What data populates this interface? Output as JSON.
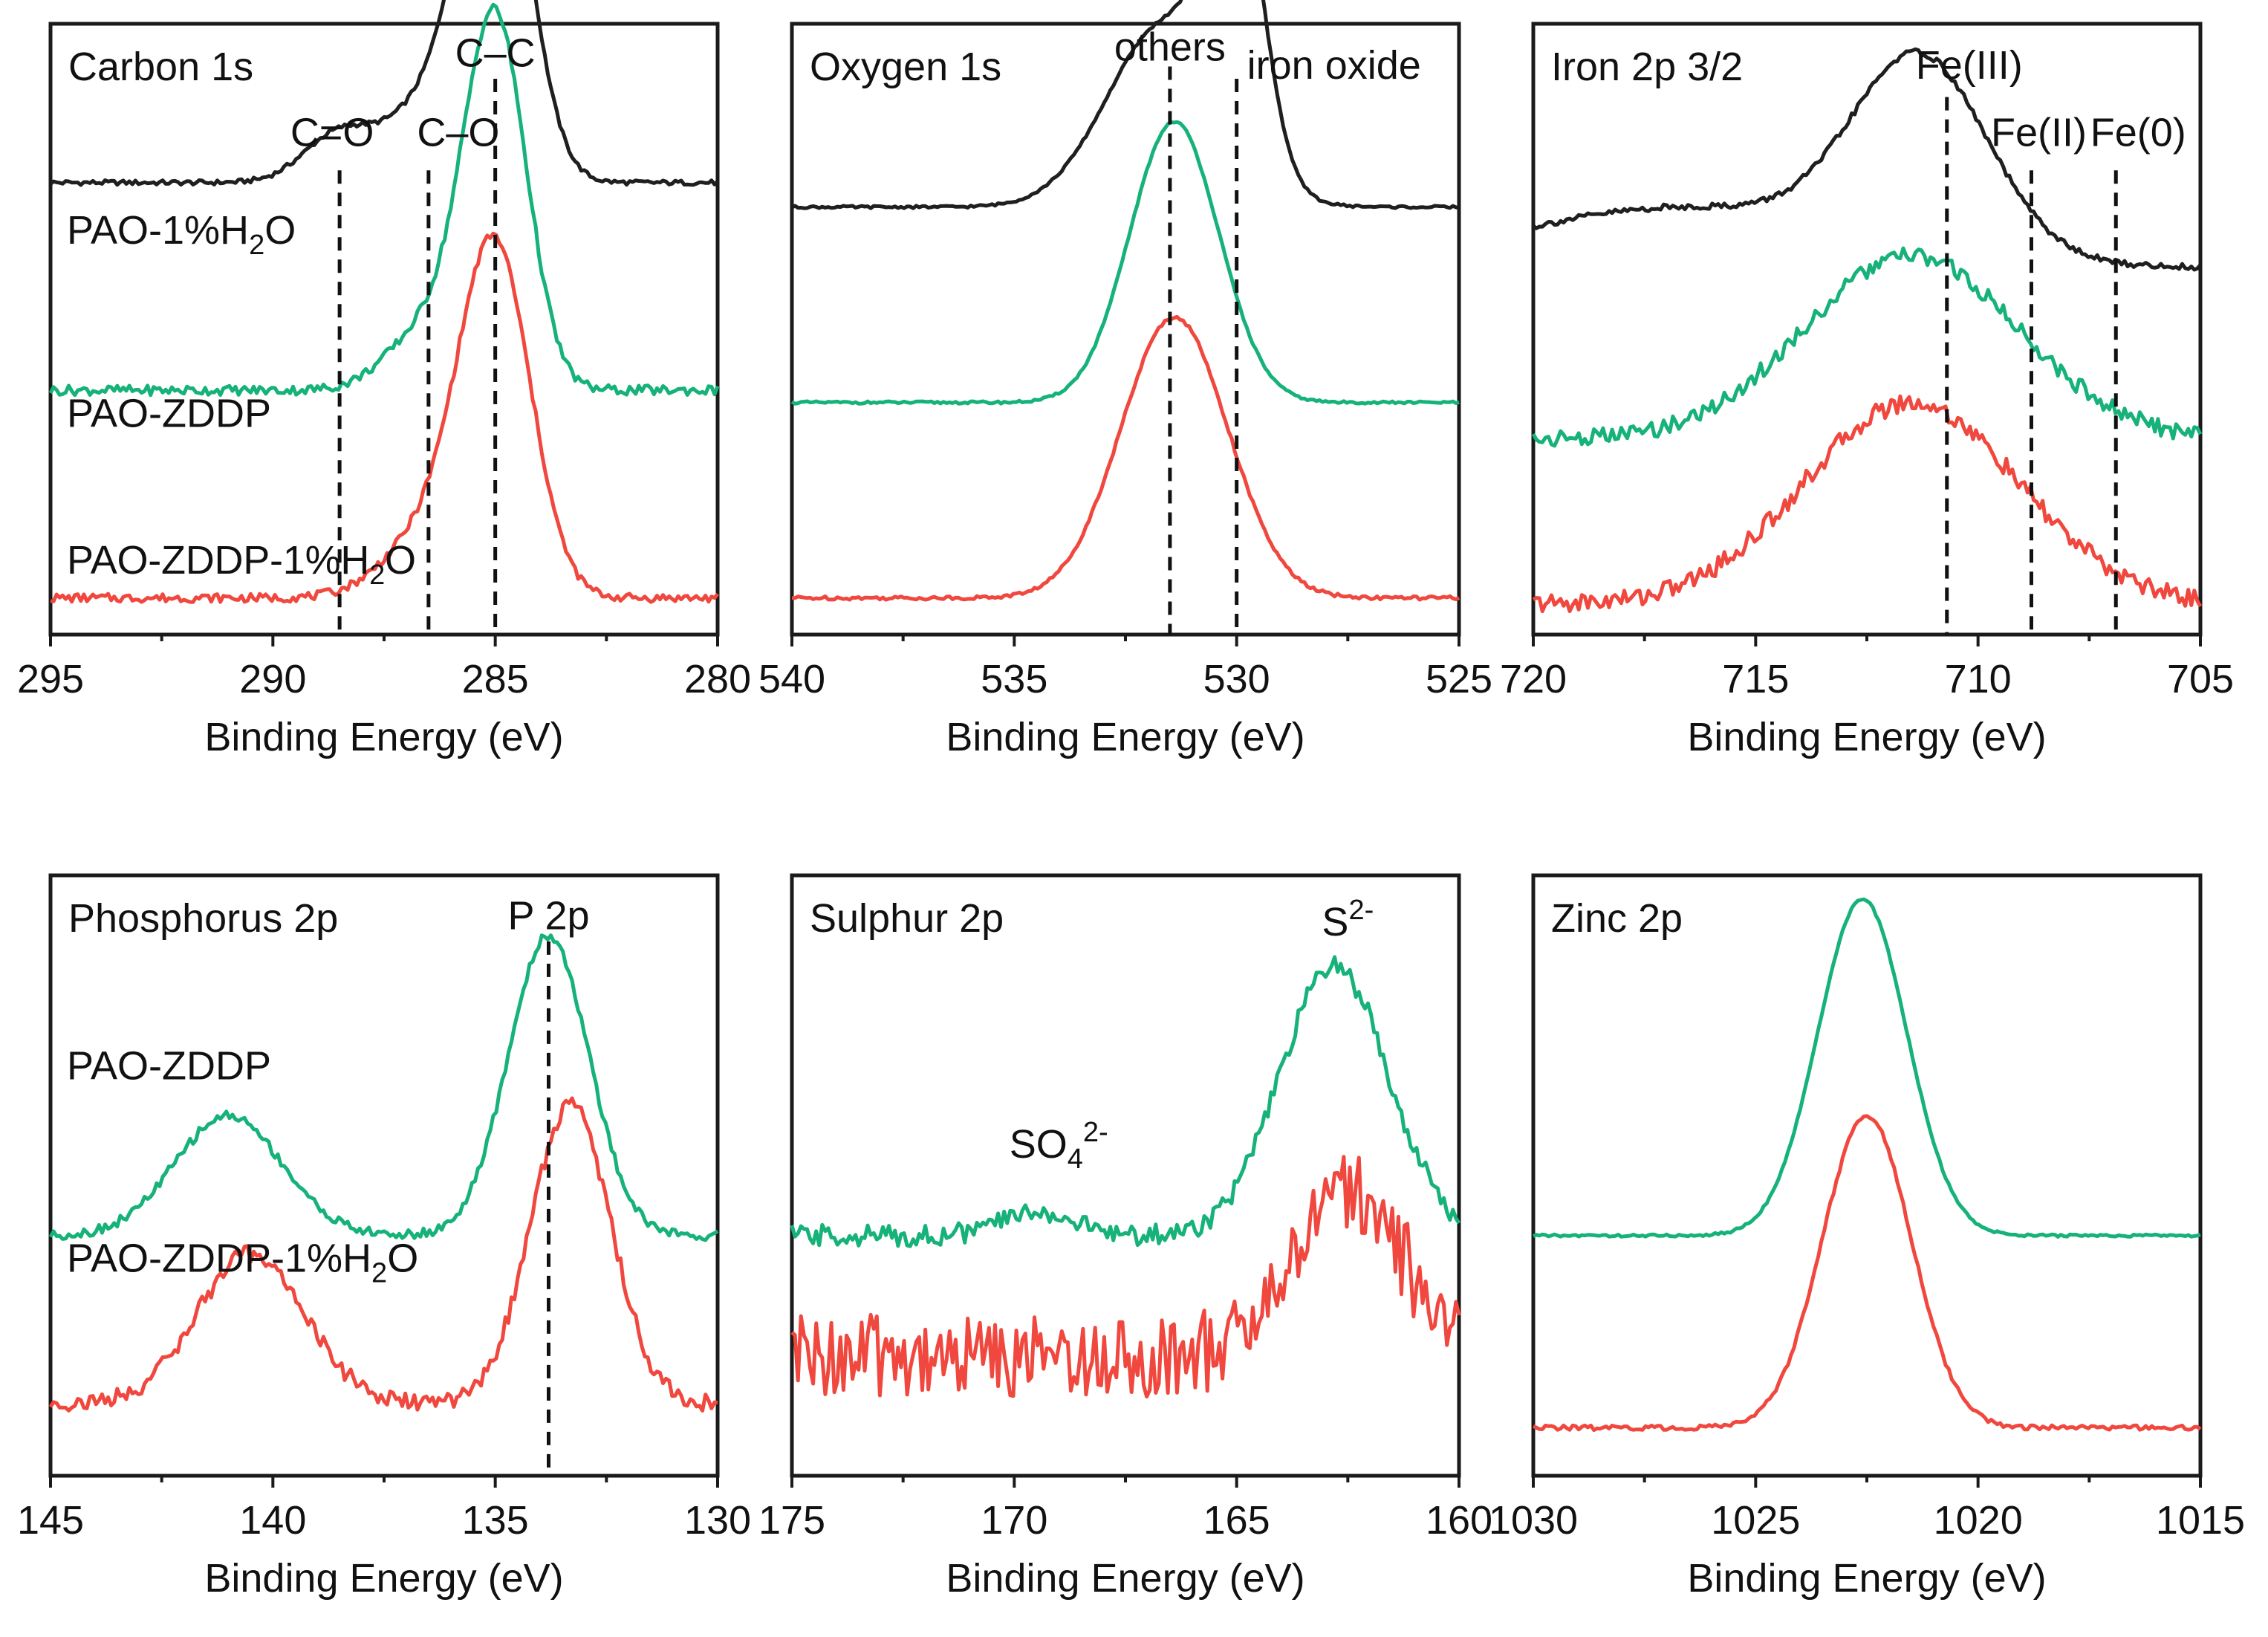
{
  "colors": {
    "PAO-1%H2O": "#1f1f1f",
    "PAO-ZDDP": "#16b27a",
    "PAO-ZDDP-1%H2O": "#f0483e"
  },
  "chart_data": [
    {
      "type": "line",
      "title": "Carbon 1s",
      "xlabel": "Binding Energy (eV)",
      "ylabel": "",
      "xlim": [
        295,
        280
      ],
      "xticks": [
        295,
        290,
        285,
        280
      ],
      "reference_lines": [
        {
          "x": 288.5,
          "label": "C=O"
        },
        {
          "x": 286.5,
          "label": "C–O"
        },
        {
          "x": 285.0,
          "label": "C–C"
        }
      ],
      "series": [
        {
          "name": "PAO-1%H2O",
          "baseline": 0.74,
          "noise": 0.004,
          "peaks": [
            [
              285.0,
              0.62,
              0.75
            ],
            [
              286.5,
              0.12,
              0.9
            ],
            [
              288.5,
              0.08,
              0.8
            ]
          ]
        },
        {
          "name": "PAO-ZDDP",
          "baseline": 0.4,
          "noise": 0.008,
          "peaks": [
            [
              285.0,
              0.6,
              0.7
            ],
            [
              286.5,
              0.1,
              0.9
            ]
          ]
        },
        {
          "name": "PAO-ZDDP-1%H2O",
          "baseline": 0.06,
          "noise": 0.007,
          "peaks": [
            [
              285.0,
              0.56,
              0.8
            ],
            [
              286.5,
              0.1,
              1.0
            ]
          ]
        }
      ],
      "labels": [
        {
          "text": "PAO-1%H",
          "sub": "2",
          "tail": "O"
        },
        {
          "text": "PAO-ZDDP",
          "sub": "",
          "tail": ""
        },
        {
          "text": "PAO-ZDDP-1%H",
          "sub": "2",
          "tail": "O"
        }
      ]
    },
    {
      "type": "line",
      "title": "Oxygen 1s",
      "xlabel": "Binding Energy (eV)",
      "ylabel": "",
      "xlim": [
        540,
        525
      ],
      "xticks": [
        540,
        535,
        530,
        525
      ],
      "reference_lines": [
        {
          "x": 531.5,
          "label": "others"
        },
        {
          "x": 530.0,
          "label": "iron oxide"
        }
      ],
      "series": [
        {
          "name": "PAO-1%H2O",
          "baseline": 0.7,
          "noise": 0.002,
          "peaks": [
            [
              530.0,
              0.44,
              0.6
            ],
            [
              531.6,
              0.3,
              1.3
            ]
          ]
        },
        {
          "name": "PAO-ZDDP",
          "baseline": 0.38,
          "noise": 0.002,
          "peaks": [
            [
              531.4,
              0.46,
              1.0
            ]
          ]
        },
        {
          "name": "PAO-ZDDP-1%H2O",
          "baseline": 0.06,
          "noise": 0.003,
          "peaks": [
            [
              531.4,
              0.46,
              1.2
            ]
          ]
        }
      ],
      "labels": []
    },
    {
      "type": "line",
      "title": "Iron 2p 3/2",
      "xlabel": "Binding Energy (eV)",
      "ylabel": "",
      "xlim": [
        720,
        705
      ],
      "xticks": [
        720,
        715,
        710,
        705
      ],
      "reference_lines": [
        {
          "x": 710.7,
          "label": "Fe(III)"
        },
        {
          "x": 708.8,
          "label": "Fe(II)"
        },
        {
          "x": 706.9,
          "label": "Fe(0)"
        }
      ],
      "series": [
        {
          "name": "PAO-1%H2O",
          "baseline": 0.6,
          "noise": 0.005,
          "peaks": [
            [
              711.3,
              0.31,
              1.5
            ],
            [
              716.5,
              0.1,
              4.0
            ]
          ]
        },
        {
          "name": "PAO-ZDDP",
          "baseline": 0.32,
          "noise": 0.014,
          "peaks": [
            [
              711.5,
              0.3,
              2.4
            ]
          ]
        },
        {
          "name": "PAO-ZDDP-1%H2O",
          "baseline": 0.05,
          "noise": 0.016,
          "peaks": [
            [
              711.5,
              0.33,
              2.4
            ]
          ]
        }
      ],
      "labels": []
    },
    {
      "type": "line",
      "title": "Phosphorus 2p",
      "xlabel": "Binding Energy (eV)",
      "ylabel": "",
      "xlim": [
        145,
        130
      ],
      "xticks": [
        145,
        140,
        135,
        130
      ],
      "reference_lines": [
        {
          "x": 133.8,
          "label": "P 2p"
        }
      ],
      "series": [
        {
          "name": "PAO-ZDDP",
          "baseline": 0.4,
          "noise": 0.008,
          "peaks": [
            [
              133.8,
              0.5,
              0.9
            ],
            [
              141.0,
              0.2,
              1.2
            ]
          ]
        },
        {
          "name": "PAO-ZDDP-1%H2O",
          "baseline": 0.12,
          "noise": 0.014,
          "peaks": [
            [
              133.3,
              0.5,
              0.9
            ],
            [
              140.5,
              0.25,
              1.2
            ]
          ]
        }
      ],
      "labels": [
        {
          "text": "PAO-ZDDP",
          "sub": "",
          "tail": ""
        },
        {
          "text": "PAO-ZDDP-1%H",
          "sub": "2",
          "tail": "O"
        }
      ]
    },
    {
      "type": "line",
      "title": "Sulphur 2p",
      "xlabel": "Binding Energy (eV)",
      "ylabel": "",
      "xlim": [
        175,
        160
      ],
      "xticks": [
        175,
        170,
        165,
        160
      ],
      "reference_lines": [],
      "annotations": [
        {
          "x": 169.0,
          "label": "SO",
          "sub": "4",
          "sup": "2-"
        },
        {
          "x": 162.5,
          "label": "S",
          "sub": "",
          "sup": "2-"
        }
      ],
      "series": [
        {
          "name": "PAO-ZDDP",
          "baseline": 0.4,
          "noise": 0.018,
          "peaks": [
            [
              162.8,
              0.45,
              1.2
            ],
            [
              169.5,
              0.04,
              0.8
            ]
          ]
        },
        {
          "name": "PAO-ZDDP-1%H2O",
          "baseline": 0.2,
          "noise": 0.07,
          "peaks": [
            [
              162.5,
              0.28,
              1.2
            ]
          ]
        }
      ],
      "labels": []
    },
    {
      "type": "line",
      "title": "Zinc 2p",
      "xlabel": "Binding Energy (eV)",
      "ylabel": "",
      "xlim": [
        1030,
        1015
      ],
      "xticks": [
        1030,
        1025,
        1020,
        1015
      ],
      "reference_lines": [],
      "series": [
        {
          "name": "PAO-ZDDP",
          "baseline": 0.4,
          "noise": 0.002,
          "peaks": [
            [
              1022.6,
              0.56,
              1.0
            ]
          ]
        },
        {
          "name": "PAO-ZDDP-1%H2O",
          "baseline": 0.08,
          "noise": 0.004,
          "peaks": [
            [
              1022.5,
              0.52,
              1.0
            ]
          ]
        }
      ],
      "labels": []
    }
  ]
}
